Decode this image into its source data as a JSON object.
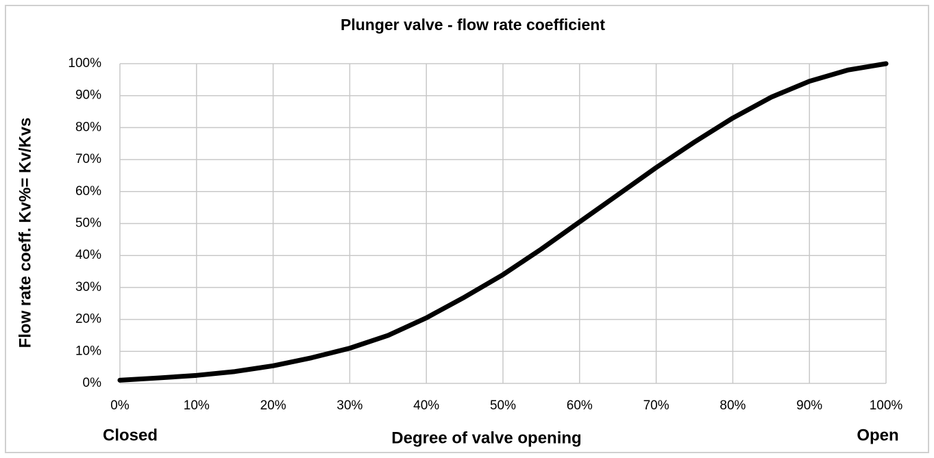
{
  "chart_data": {
    "type": "line",
    "title": "Plunger valve -  flow rate coefficient",
    "x_label": "Degree of valve opening",
    "y_label": "Flow rate coeff. Kv%= Kv/Kvs",
    "annotations": [
      "Closed",
      "Open"
    ],
    "x": [
      0,
      5,
      10,
      15,
      20,
      25,
      30,
      35,
      40,
      45,
      50,
      55,
      60,
      65,
      70,
      75,
      80,
      85,
      90,
      95,
      100
    ],
    "series": [
      {
        "name": "Kv/Kvs",
        "color": "#000000",
        "values": [
          1,
          1.7,
          2.5,
          3.7,
          5.5,
          8,
          11,
          15,
          20.5,
          27,
          34,
          42,
          50.5,
          59,
          67.5,
          75.5,
          83,
          89.5,
          94.5,
          98,
          100
        ]
      }
    ],
    "xlim": [
      0,
      100
    ],
    "ylim": [
      0,
      100
    ],
    "xticks": [
      {
        "value": 0,
        "label": "0%"
      },
      {
        "value": 10,
        "label": "10%"
      },
      {
        "value": 20,
        "label": "20%"
      },
      {
        "value": 30,
        "label": "30%"
      },
      {
        "value": 40,
        "label": "40%"
      },
      {
        "value": 50,
        "label": "50%"
      },
      {
        "value": 60,
        "label": "60%"
      },
      {
        "value": 70,
        "label": "70%"
      },
      {
        "value": 80,
        "label": "80%"
      },
      {
        "value": 90,
        "label": "90%"
      },
      {
        "value": 100,
        "label": "100%"
      }
    ],
    "yticks": [
      {
        "value": 0,
        "label": "0%"
      },
      {
        "value": 10,
        "label": "10%"
      },
      {
        "value": 20,
        "label": "20%"
      },
      {
        "value": 30,
        "label": "30%"
      },
      {
        "value": 40,
        "label": "40%"
      },
      {
        "value": 50,
        "label": "50%"
      },
      {
        "value": 60,
        "label": "60%"
      },
      {
        "value": 70,
        "label": "70%"
      },
      {
        "value": 80,
        "label": "80%"
      },
      {
        "value": 90,
        "label": "90%"
      },
      {
        "value": 100,
        "label": "100%"
      }
    ],
    "grid": true
  }
}
